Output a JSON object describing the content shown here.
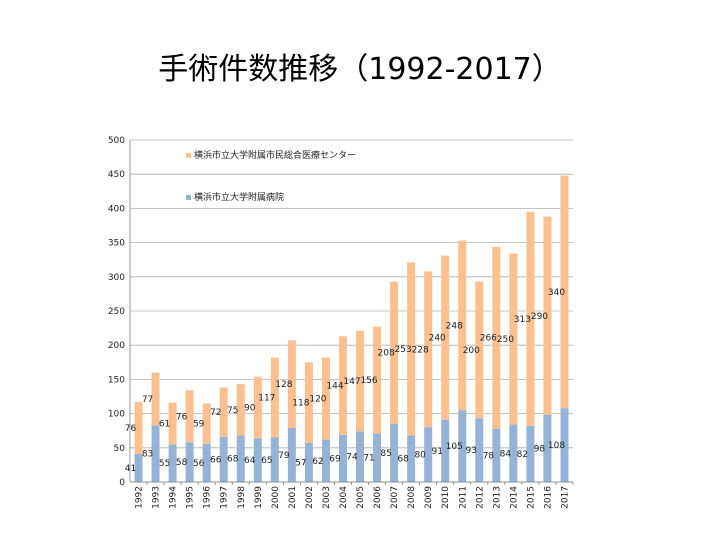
{
  "page": {
    "title": "手術件数推移（1992-2017）"
  },
  "chart_data": {
    "type": "bar",
    "stacked": true,
    "categories": [
      "1992",
      "1993",
      "1994",
      "1995",
      "1996",
      "1997",
      "1998",
      "1999",
      "2000",
      "2001",
      "2002",
      "2003",
      "2004",
      "2005",
      "2006",
      "2007",
      "2008",
      "2009",
      "2010",
      "2011",
      "2012",
      "2013",
      "2014",
      "2015",
      "2016",
      "2017"
    ],
    "series": [
      {
        "name": "横浜市立大学附属病院",
        "color": "#95b3d7",
        "values": [
          41,
          83,
          55,
          58,
          56,
          66,
          68,
          64,
          65,
          79,
          57,
          62,
          69,
          74,
          71,
          85,
          68,
          80,
          91,
          105,
          93,
          78,
          84,
          82,
          98,
          108
        ]
      },
      {
        "name": "横浜市立大学附属市民総合医療センター",
        "color": "#fac090",
        "values": [
          76,
          77,
          61,
          76,
          59,
          72,
          75,
          90,
          117,
          128,
          118,
          120,
          144,
          147,
          156,
          208,
          253,
          228,
          240,
          248,
          200,
          266,
          250,
          313,
          290,
          340
        ]
      }
    ],
    "ylim": [
      0,
      500
    ],
    "yticks": [
      0,
      50,
      100,
      150,
      200,
      250,
      300,
      350,
      400,
      450,
      500
    ],
    "grid": true,
    "legend": "top-left inside"
  }
}
